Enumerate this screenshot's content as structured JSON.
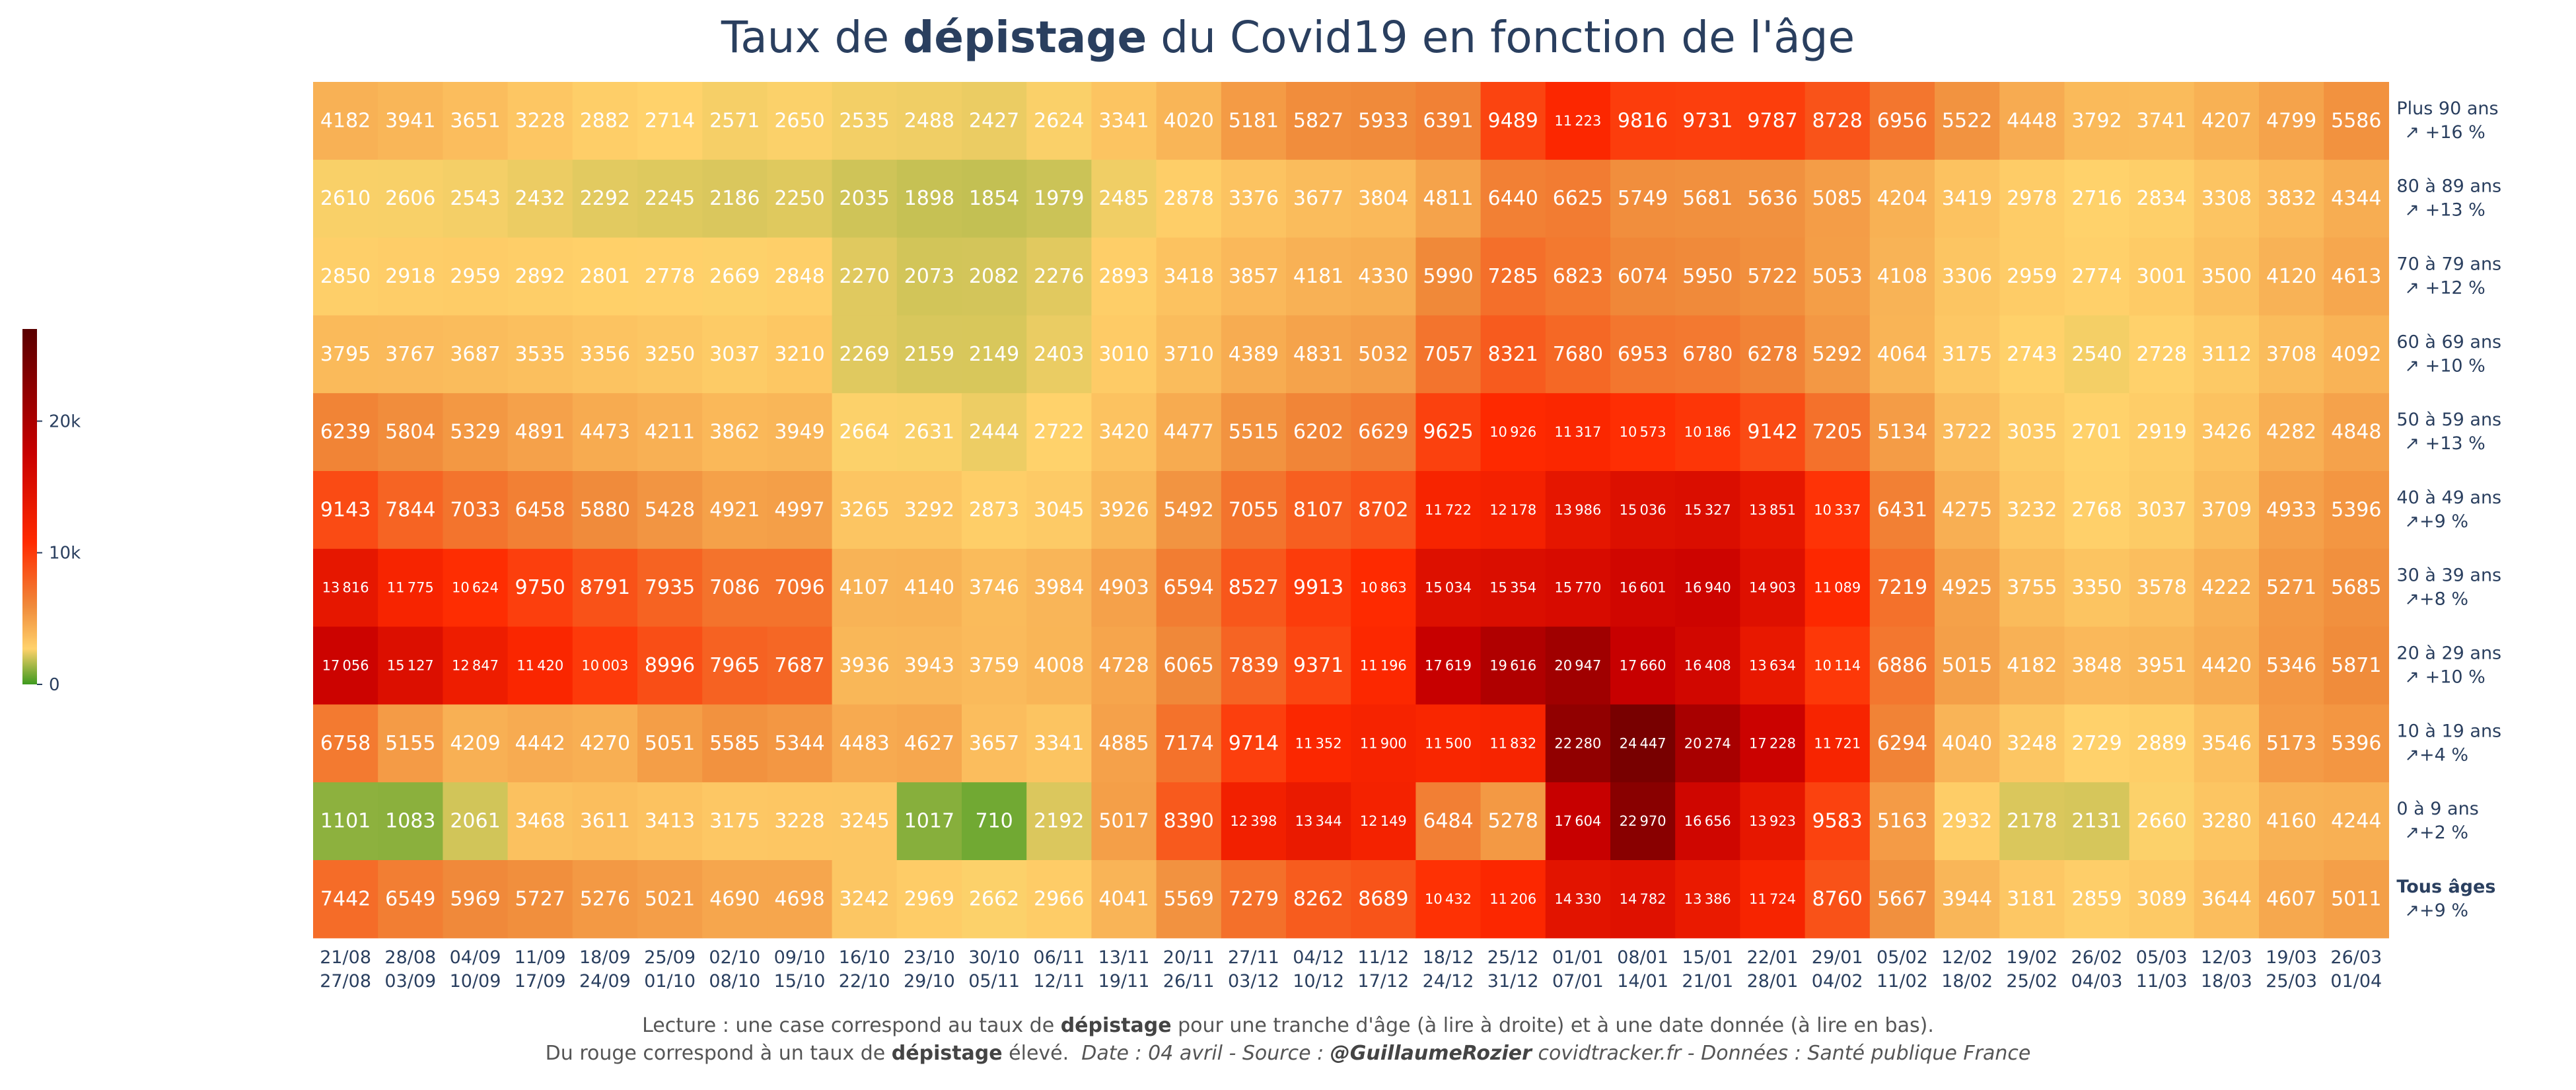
{
  "title": {
    "part1": "Taux de ",
    "bold": "dépistage",
    "part2": " du Covid19 en fonction de l'âge"
  },
  "colors": {
    "scale": [
      "#3e9a1f",
      "#ffd26b",
      "#f08a3a",
      "#ff2a00",
      "#c80000",
      "#5a0000"
    ],
    "text": "#2a3f5f"
  },
  "chart_data": {
    "type": "heatmap",
    "zmin": 0,
    "zmax": 27000,
    "colorbar_ticks": [
      {
        "value": 0,
        "label": "0"
      },
      {
        "value": 10000,
        "label": "10k"
      },
      {
        "value": 20000,
        "label": "20k"
      }
    ],
    "x": [
      [
        "21/08",
        "27/08"
      ],
      [
        "28/08",
        "03/09"
      ],
      [
        "04/09",
        "10/09"
      ],
      [
        "11/09",
        "17/09"
      ],
      [
        "18/09",
        "24/09"
      ],
      [
        "25/09",
        "01/10"
      ],
      [
        "02/10",
        "08/10"
      ],
      [
        "09/10",
        "15/10"
      ],
      [
        "16/10",
        "22/10"
      ],
      [
        "23/10",
        "29/10"
      ],
      [
        "30/10",
        "05/11"
      ],
      [
        "06/11",
        "12/11"
      ],
      [
        "13/11",
        "19/11"
      ],
      [
        "20/11",
        "26/11"
      ],
      [
        "27/11",
        "03/12"
      ],
      [
        "04/12",
        "10/12"
      ],
      [
        "11/12",
        "17/12"
      ],
      [
        "18/12",
        "24/12"
      ],
      [
        "25/12",
        "31/12"
      ],
      [
        "01/01",
        "07/01"
      ],
      [
        "08/01",
        "14/01"
      ],
      [
        "15/01",
        "21/01"
      ],
      [
        "22/01",
        "28/01"
      ],
      [
        "29/01",
        "04/02"
      ],
      [
        "05/02",
        "11/02"
      ],
      [
        "12/02",
        "18/02"
      ],
      [
        "19/02",
        "25/02"
      ],
      [
        "26/02",
        "04/03"
      ],
      [
        "05/03",
        "11/03"
      ],
      [
        "12/03",
        "18/03"
      ],
      [
        "19/03",
        "25/03"
      ],
      [
        "26/03",
        "01/04"
      ]
    ],
    "rows": [
      {
        "label": "Plus 90 ans",
        "trend": "↗ +16 %",
        "bold": false,
        "values": [
          4182,
          3941,
          3651,
          3228,
          2882,
          2714,
          2571,
          2650,
          2535,
          2488,
          2427,
          2624,
          3341,
          4020,
          5181,
          5827,
          5933,
          6391,
          9489,
          11223,
          9816,
          9731,
          9787,
          8728,
          6956,
          5522,
          4448,
          3792,
          3741,
          4207,
          4799,
          5586
        ]
      },
      {
        "label": "80 à 89 ans",
        "trend": "↗ +13 %",
        "bold": false,
        "values": [
          2610,
          2606,
          2543,
          2432,
          2292,
          2245,
          2186,
          2250,
          2035,
          1898,
          1854,
          1979,
          2485,
          2878,
          3376,
          3677,
          3804,
          4811,
          6440,
          6625,
          5749,
          5681,
          5636,
          5085,
          4204,
          3419,
          2978,
          2716,
          2834,
          3308,
          3832,
          4344
        ]
      },
      {
        "label": "70 à 79 ans",
        "trend": "↗ +12 %",
        "bold": false,
        "values": [
          2850,
          2918,
          2959,
          2892,
          2801,
          2778,
          2669,
          2848,
          2270,
          2073,
          2082,
          2276,
          2893,
          3418,
          3857,
          4181,
          4330,
          5990,
          7285,
          6823,
          6074,
          5950,
          5722,
          5053,
          4108,
          3306,
          2959,
          2774,
          3001,
          3500,
          4120,
          4613
        ]
      },
      {
        "label": "60 à 69 ans",
        "trend": "↗ +10 %",
        "bold": false,
        "values": [
          3795,
          3767,
          3687,
          3535,
          3356,
          3250,
          3037,
          3210,
          2269,
          2159,
          2149,
          2403,
          3010,
          3710,
          4389,
          4831,
          5032,
          7057,
          8321,
          7680,
          6953,
          6780,
          6278,
          5292,
          4064,
          3175,
          2743,
          2540,
          2728,
          3112,
          3708,
          4092
        ]
      },
      {
        "label": "50 à 59 ans",
        "trend": "↗ +13 %",
        "bold": false,
        "values": [
          6239,
          5804,
          5329,
          4891,
          4473,
          4211,
          3862,
          3949,
          2664,
          2631,
          2444,
          2722,
          3420,
          4477,
          5515,
          6202,
          6629,
          9625,
          10926,
          11317,
          10573,
          10186,
          9142,
          7205,
          5134,
          3722,
          3035,
          2701,
          2919,
          3426,
          4282,
          4848
        ]
      },
      {
        "label": "40 à 49 ans",
        "trend": "↗+9 %",
        "bold": false,
        "values": [
          9143,
          7844,
          7033,
          6458,
          5880,
          5428,
          4921,
          4997,
          3265,
          3292,
          2873,
          3045,
          3926,
          5492,
          7055,
          8107,
          8702,
          11722,
          12178,
          13986,
          15036,
          15327,
          13851,
          10337,
          6431,
          4275,
          3232,
          2768,
          3037,
          3709,
          4933,
          5396
        ]
      },
      {
        "label": "30 à 39 ans",
        "trend": "↗+8 %",
        "bold": false,
        "values": [
          13816,
          11775,
          10624,
          9750,
          8791,
          7935,
          7086,
          7096,
          4107,
          4140,
          3746,
          3984,
          4903,
          6594,
          8527,
          9913,
          10863,
          15034,
          15354,
          15770,
          16601,
          16940,
          14903,
          11089,
          7219,
          4925,
          3755,
          3350,
          3578,
          4222,
          5271,
          5685
        ]
      },
      {
        "label": "20 à 29 ans",
        "trend": "↗ +10 %",
        "bold": false,
        "values": [
          17056,
          15127,
          12847,
          11420,
          10003,
          8996,
          7965,
          7687,
          3936,
          3943,
          3759,
          4008,
          4728,
          6065,
          7839,
          9371,
          11196,
          17619,
          19616,
          20947,
          17660,
          16408,
          13634,
          10114,
          6886,
          5015,
          4182,
          3848,
          3951,
          4420,
          5346,
          5871
        ]
      },
      {
        "label": "10 à 19 ans",
        "trend": "↗+4 %",
        "bold": false,
        "values": [
          6758,
          5155,
          4209,
          4442,
          4270,
          5051,
          5585,
          5344,
          4483,
          4627,
          3657,
          3341,
          4885,
          7174,
          9714,
          11352,
          11900,
          11500,
          11832,
          22280,
          24447,
          20274,
          17228,
          11721,
          6294,
          4040,
          3248,
          2729,
          2889,
          3546,
          5173,
          5396
        ]
      },
      {
        "label": "0 à 9 ans",
        "trend": "↗+2 %",
        "bold": false,
        "values": [
          1101,
          1083,
          2061,
          3468,
          3611,
          3413,
          3175,
          3228,
          3245,
          1017,
          710,
          2192,
          5017,
          8390,
          12398,
          13344,
          12149,
          6484,
          5278,
          17604,
          22970,
          16656,
          13923,
          9583,
          5163,
          2932,
          2178,
          2131,
          2660,
          3280,
          4160,
          4244
        ]
      },
      {
        "label": "Tous âges",
        "trend": "↗+9 %",
        "bold": true,
        "values": [
          7442,
          6549,
          5969,
          5727,
          5276,
          5021,
          4690,
          4698,
          3242,
          2969,
          2662,
          2966,
          4041,
          5569,
          7279,
          8262,
          8689,
          10432,
          11206,
          14330,
          14782,
          13386,
          11724,
          8760,
          5667,
          3944,
          3181,
          2859,
          3089,
          3644,
          4607,
          5011
        ]
      }
    ]
  },
  "footer": {
    "line1_a": "Lecture : une case correspond au taux de ",
    "line1_bold": "dépistage",
    "line1_b": " pour une tranche d'âge (à lire à droite) et à une date donnée (à lire en bas).",
    "line2_a": "Du rouge correspond à un taux de ",
    "line2_bold": "dépistage",
    "line2_b": " élevé.",
    "line2_italic": "Date : 04 avril - Source : ",
    "line2_source": "@GuillaumeRozier",
    "line2_rest": " covidtracker.fr - Données : Santé publique France"
  }
}
